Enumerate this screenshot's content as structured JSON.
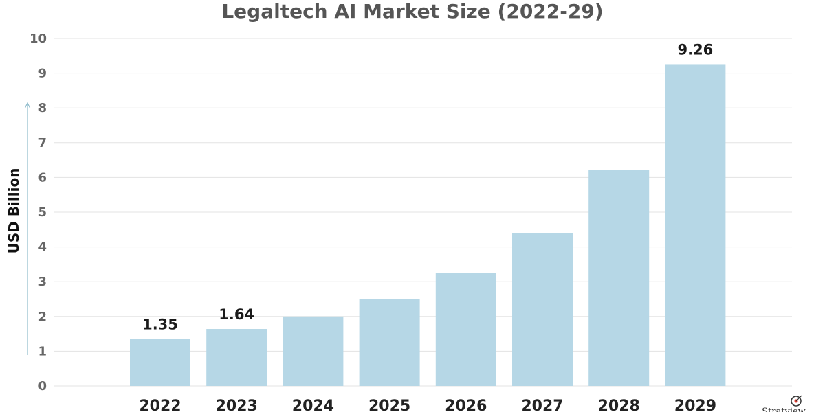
{
  "chart_data": {
    "type": "bar",
    "title": "Legaltech AI Market Size (2022-29)",
    "ylabel": "USD Billion",
    "xlabel": "",
    "ylim": [
      0,
      10
    ],
    "yticks": [
      0,
      1,
      2,
      3,
      4,
      5,
      6,
      7,
      8,
      9,
      10
    ],
    "grid": true,
    "categories": [
      "2022",
      "2023",
      "2024",
      "2025",
      "2026",
      "2027",
      "2028",
      "2029"
    ],
    "values": [
      1.35,
      1.64,
      2.0,
      2.5,
      3.25,
      4.4,
      6.22,
      9.26
    ],
    "data_labels": [
      "1.35",
      "1.64",
      "",
      "",
      "",
      "",
      "",
      "9.26"
    ],
    "bar_color": "#b6d7e6"
  },
  "logo": {
    "text": "Stratview"
  }
}
